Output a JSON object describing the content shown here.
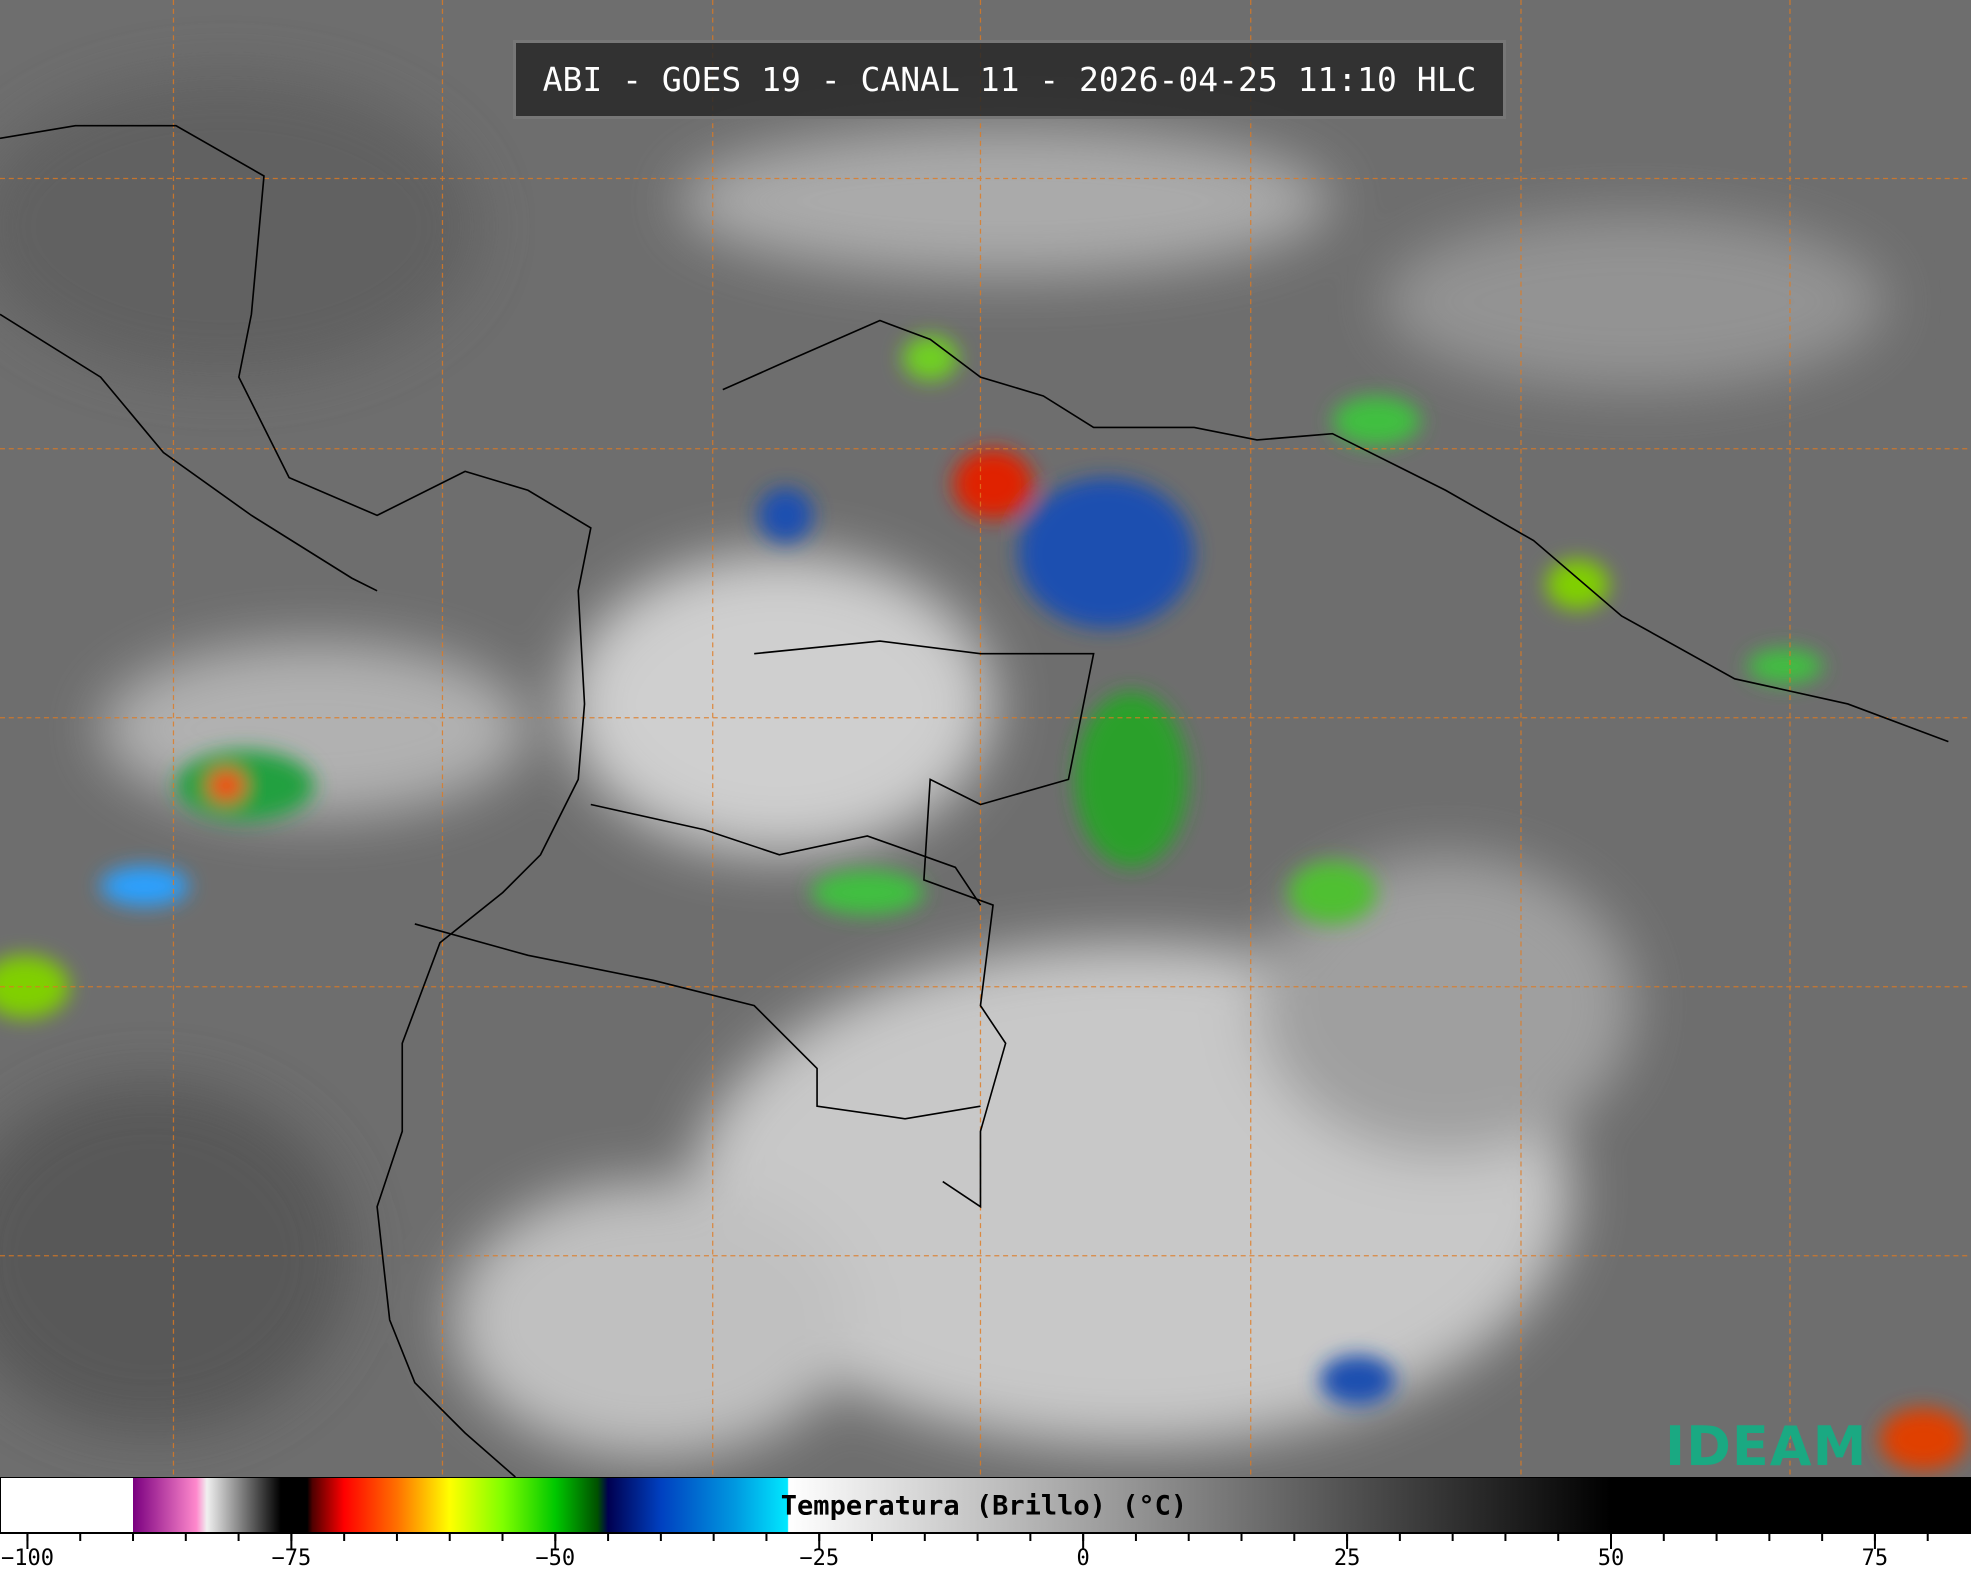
{
  "title": "ABI - GOES 19 - CANAL 11 - 2026-04-25 11:10 HLC",
  "logo": "IDEAM",
  "colorbar": {
    "label": "Temperatura (Brillo) (°C)",
    "lim": [
      -102.6,
      84.1
    ],
    "ticks": [
      {
        "value": -100,
        "label": "−100"
      },
      {
        "value": -75,
        "label": "−75"
      },
      {
        "value": -50,
        "label": "−50"
      },
      {
        "value": -25,
        "label": "−25"
      },
      0,
      25,
      50,
      75
    ],
    "minor_tick_interval": 5,
    "stops": [
      {
        "value": -90,
        "color": "#ffffff"
      },
      {
        "value": -90,
        "color": "#7a0080"
      },
      {
        "value": -84,
        "color": "#ff88cc"
      },
      {
        "value": -83,
        "color": "#f0f0f0"
      },
      {
        "value": -76,
        "color": "#000000"
      },
      {
        "value": -73.5,
        "color": "#000000"
      },
      {
        "value": -73,
        "color": "#500000"
      },
      {
        "value": -70,
        "color": "#ff0000"
      },
      {
        "value": -65,
        "color": "#ff7000"
      },
      {
        "value": -60,
        "color": "#ffff00"
      },
      {
        "value": -55,
        "color": "#80ff00"
      },
      {
        "value": -50,
        "color": "#00c800"
      },
      {
        "value": -46,
        "color": "#005000"
      },
      {
        "value": -45,
        "color": "#000050"
      },
      {
        "value": -40,
        "color": "#0040c0"
      },
      {
        "value": -33,
        "color": "#0098e0"
      },
      {
        "value": -28,
        "color": "#00e8ff"
      },
      {
        "value": -27.9,
        "color": "#ffffff"
      },
      {
        "value": 50,
        "color": "#000000"
      }
    ]
  }
}
